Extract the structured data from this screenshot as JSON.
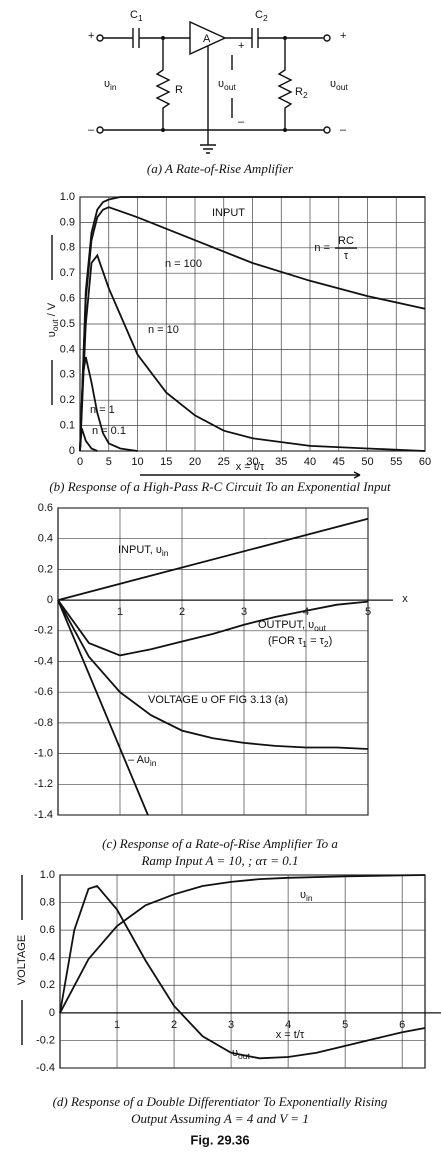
{
  "circuit": {
    "plus_in": "+",
    "minus_in": "–",
    "c1": [
      "C",
      {
        "sub": "1"
      }
    ],
    "amp": "A",
    "c2": [
      "C",
      {
        "sub": "2"
      }
    ],
    "plus_out": "+",
    "minus_out": "–",
    "v_in": [
      "υ",
      {
        "sub": "in"
      }
    ],
    "r": "R",
    "v_mid": [
      "υ",
      {
        "sub": "out"
      }
    ],
    "plus_mid": "+",
    "minus_mid": "–",
    "r2": [
      "R",
      {
        "sub": "2"
      }
    ],
    "v_out": [
      "υ",
      {
        "sub": "out"
      }
    ]
  },
  "chart_data": [
    {
      "type": "line",
      "y_label": [
        "υ",
        {
          "sub": "out"
        },
        " / V"
      ],
      "x_label": "x = t/τ",
      "xlim": [
        0,
        60
      ],
      "ylim": [
        0,
        1
      ],
      "xticks": [
        0,
        5,
        10,
        15,
        20,
        25,
        30,
        35,
        40,
        45,
        50,
        55,
        60
      ],
      "yticks": [
        0,
        0.1,
        0.2,
        0.3,
        0.4,
        0.5,
        0.6,
        0.7,
        0.8,
        0.9,
        {
          "value": 1,
          "label": "1.0"
        }
      ],
      "grid": true,
      "series": [
        {
          "name": "INPUT",
          "color": "#111",
          "x": [
            0,
            1,
            2,
            3,
            4,
            5,
            7,
            60
          ],
          "values": [
            0,
            0.63,
            0.86,
            0.95,
            0.98,
            0.99,
            1,
            1
          ]
        },
        {
          "name": "n = 100",
          "color": "#111",
          "x": [
            0,
            1,
            2,
            3,
            4,
            5,
            10,
            20,
            30,
            40,
            50,
            60
          ],
          "values": [
            0,
            0.6,
            0.83,
            0.92,
            0.95,
            0.96,
            0.92,
            0.83,
            0.74,
            0.67,
            0.61,
            0.56
          ]
        },
        {
          "name": "n = 10",
          "color": "#111",
          "x": [
            0,
            1,
            2,
            3,
            5,
            10,
            15,
            20,
            25,
            30,
            40,
            50,
            60
          ],
          "values": [
            0,
            0.5,
            0.74,
            0.77,
            0.64,
            0.38,
            0.23,
            0.14,
            0.08,
            0.05,
            0.02,
            0.01,
            0
          ]
        },
        {
          "name": "n = 1",
          "color": "#111",
          "x": [
            0,
            0.5,
            1,
            2,
            3,
            4,
            5,
            7,
            10
          ],
          "values": [
            0,
            0.3,
            0.37,
            0.27,
            0.15,
            0.07,
            0.03,
            0.01,
            0
          ]
        },
        {
          "name": "n = 0.1",
          "color": "#111",
          "x": [
            0,
            0.3,
            1,
            2,
            3
          ],
          "values": [
            0,
            0.09,
            0.04,
            0.01,
            0
          ]
        }
      ],
      "annotations": [
        {
          "text": "n =",
          "num": "RC",
          "den": "τ"
        }
      ]
    },
    {
      "type": "line",
      "x_label": "x",
      "xlim": [
        0,
        5
      ],
      "ylim": [
        -1.4,
        0.6
      ],
      "xticks": [
        1,
        2,
        3,
        4,
        5
      ],
      "yticks": [
        -1.4,
        -1.2,
        {
          "value": -1,
          "label": "-1.0"
        },
        -0.8,
        -0.6,
        -0.4,
        -0.2,
        0,
        0.2,
        0.4,
        0.6
      ],
      "grid": true,
      "series": [
        {
          "name": [
            "INPUT, υ",
            {
              "sub": "in"
            }
          ],
          "color": "#111",
          "x": [
            0,
            5
          ],
          "values": [
            0,
            0.53
          ]
        },
        {
          "name": [
            "OUTPUT, υ",
            {
              "sub": "out"
            }
          ],
          "color": "#111",
          "x": [
            0,
            0.5,
            1,
            1.5,
            2,
            2.5,
            3,
            3.5,
            4,
            4.5,
            5
          ],
          "values": [
            0,
            -0.28,
            -0.36,
            -0.32,
            -0.27,
            -0.22,
            -0.16,
            -0.11,
            -0.07,
            -0.03,
            -0.01
          ]
        },
        {
          "name": "VOLTAGE υ OF FIG 3.13 (a)",
          "color": "#111",
          "x": [
            0,
            0.5,
            1,
            1.5,
            2,
            2.5,
            3,
            3.5,
            4,
            4.5,
            5
          ],
          "values": [
            0,
            -0.37,
            -0.6,
            -0.75,
            -0.85,
            -0.9,
            -0.93,
            -0.95,
            -0.96,
            -0.96,
            -0.97
          ]
        },
        {
          "name": [
            "– Aυ",
            {
              "sub": "in"
            }
          ],
          "color": "#111",
          "x": [
            0,
            1.45
          ],
          "values": [
            0,
            -1.4
          ]
        }
      ],
      "annotations": [
        [
          "(FOR τ",
          {
            "sub": "1"
          },
          " = τ",
          {
            "sub": "2"
          },
          ")"
        ]
      ]
    },
    {
      "type": "line",
      "y_label": "VOLTAGE",
      "x_label": "x = t/τ",
      "xlim": [
        0,
        6.4
      ],
      "ylim": [
        -0.4,
        1
      ],
      "xticks": [
        1,
        2,
        3,
        4,
        5,
        6
      ],
      "yticks": [
        -0.4,
        -0.2,
        0,
        0.2,
        0.4,
        0.6,
        0.8,
        {
          "value": 1,
          "label": "1.0"
        }
      ],
      "grid": true,
      "series": [
        {
          "name": [
            "υ",
            {
              "sub": "in"
            }
          ],
          "color": "#111",
          "x": [
            0,
            0.5,
            1,
            1.5,
            2,
            2.5,
            3,
            3.5,
            4,
            5,
            6.4
          ],
          "values": [
            0,
            0.39,
            0.63,
            0.78,
            0.86,
            0.92,
            0.95,
            0.97,
            0.98,
            0.99,
            1
          ]
        },
        {
          "name": [
            "υ",
            {
              "sub": "out"
            }
          ],
          "color": "#111",
          "x": [
            0,
            0.25,
            0.5,
            0.65,
            1,
            1.5,
            2,
            2.5,
            3,
            3.5,
            4,
            4.5,
            5,
            5.5,
            6,
            6.4
          ],
          "values": [
            0,
            0.6,
            0.9,
            0.92,
            0.75,
            0.38,
            0.05,
            -0.17,
            -0.29,
            -0.33,
            -0.32,
            -0.29,
            -0.24,
            -0.19,
            -0.14,
            -0.11
          ]
        }
      ]
    }
  ],
  "captions": [
    "(a) A Rate-of-Rise Amplifier",
    "(b) Response of a High-Pass R-C Circuit To an Exponential Input",
    "(c) Response of a Rate-of-Rise Amplifier To a",
    "Ramp Input A = 10, ; ατ = 0.1",
    "(d) Response of a Double Differentiator To Exponentially Rising",
    "Output Assuming A = 4 and V = 1"
  ],
  "figure_label": "Fig. 29.36"
}
